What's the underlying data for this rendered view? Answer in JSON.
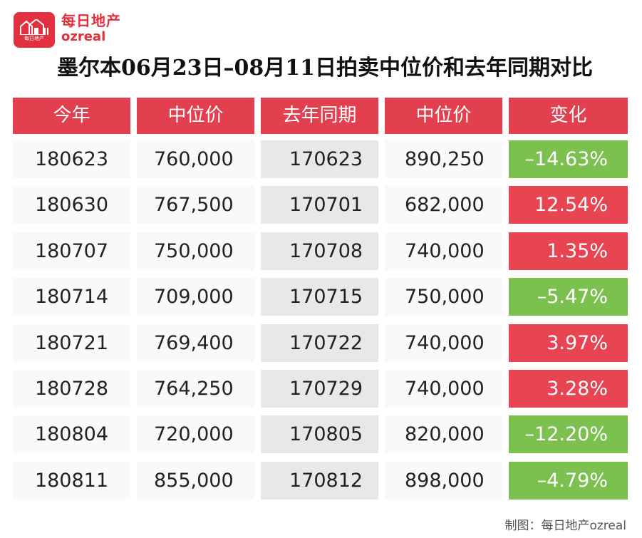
{
  "header": {
    "logo_small_text": "每日地产",
    "brand_cn": "每日地产",
    "brand_en": "ozreal"
  },
  "chart_data": {
    "type": "table",
    "title": "墨尔本06月23日–08月11日拍卖中位价和去年同期对比",
    "columns": [
      "今年",
      "中位价",
      "去年同期",
      "中位价",
      "变化"
    ],
    "rows": [
      {
        "this_year": "180623",
        "median": "760,000",
        "last_year": "170623",
        "last_median": "890,250",
        "change": "–14.63%",
        "direction": "down"
      },
      {
        "this_year": "180630",
        "median": "767,500",
        "last_year": "170701",
        "last_median": "682,000",
        "change": "12.54%",
        "direction": "up"
      },
      {
        "this_year": "180707",
        "median": "750,000",
        "last_year": "170708",
        "last_median": "740,000",
        "change": "1.35%",
        "direction": "up"
      },
      {
        "this_year": "180714",
        "median": "709,000",
        "last_year": "170715",
        "last_median": "750,000",
        "change": "–5.47%",
        "direction": "down"
      },
      {
        "this_year": "180721",
        "median": "769,400",
        "last_year": "170722",
        "last_median": "740,000",
        "change": "3.97%",
        "direction": "up"
      },
      {
        "this_year": "180728",
        "median": "764,250",
        "last_year": "170729",
        "last_median": "740,000",
        "change": "3.28%",
        "direction": "up"
      },
      {
        "this_year": "180804",
        "median": "720,000",
        "last_year": "170805",
        "last_median": "820,000",
        "change": "–12.20%",
        "direction": "down"
      },
      {
        "this_year": "180811",
        "median": "855,000",
        "last_year": "170812",
        "last_median": "898,000",
        "change": "–4.79%",
        "direction": "down"
      }
    ],
    "colors": {
      "header": "#e2404f",
      "up": "#e84452",
      "down": "#7cc14f"
    }
  },
  "footer": {
    "credit": "制图：每日地产ozreal"
  }
}
